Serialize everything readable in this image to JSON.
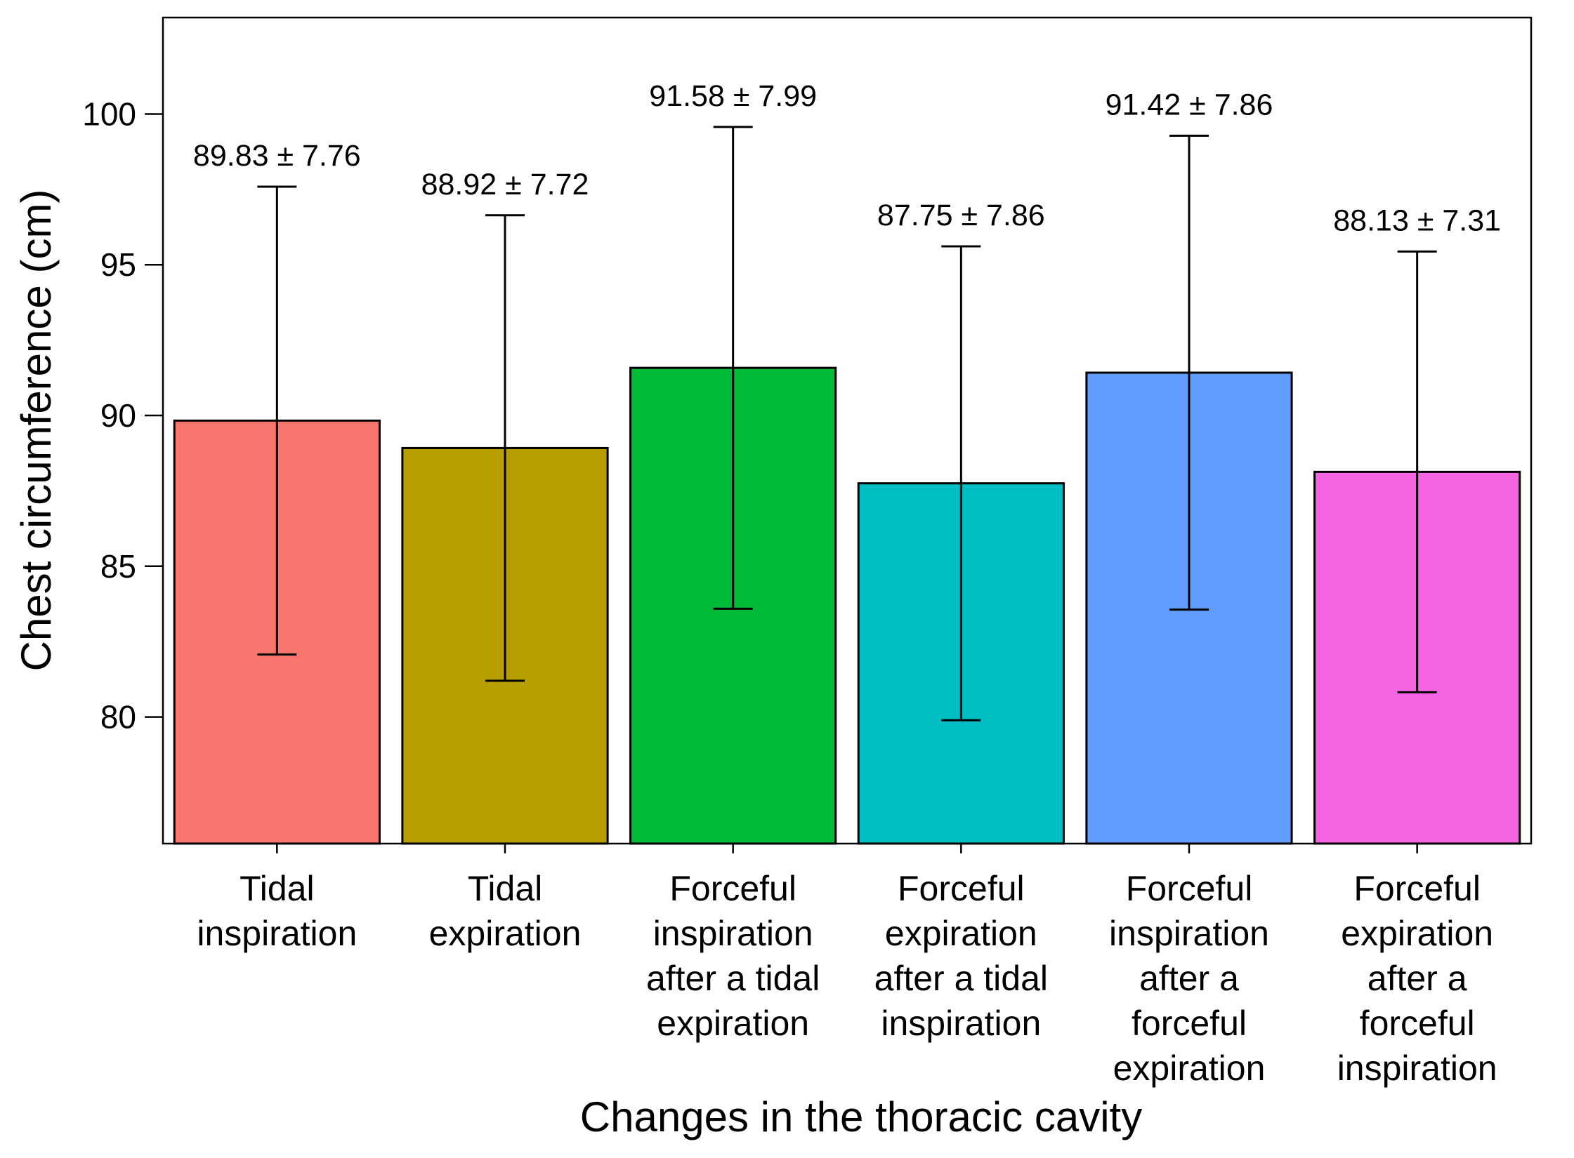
{
  "chart_data": {
    "type": "bar",
    "xlabel": "Changes in the thoracic cavity",
    "ylabel": "Chest circumference (cm)",
    "ylim": [
      75.8,
      103.2
    ],
    "yticks": [
      80,
      85,
      90,
      95,
      100
    ],
    "ytick_labels": [
      "80",
      "85",
      "90",
      "95",
      "100"
    ],
    "grid": false,
    "legend": "none",
    "categories": [
      "Tidal inspiration",
      "Tidal expiration",
      "Forceful inspiration after a tidal expiration",
      "Forceful expiration after a tidal inspiration",
      "Forceful inspiration after a forceful expiration",
      "Forceful expiration after a forceful inspiration"
    ],
    "category_lines": [
      [
        "Tidal",
        "inspiration"
      ],
      [
        "Tidal",
        "expiration"
      ],
      [
        "Forceful",
        "inspiration",
        "after a tidal",
        "expiration"
      ],
      [
        "Forceful",
        "expiration",
        "after a tidal",
        "inspiration"
      ],
      [
        "Forceful",
        "inspiration",
        "after a",
        "forceful",
        "expiration"
      ],
      [
        "Forceful",
        "expiration",
        "after a",
        "forceful",
        "inspiration"
      ]
    ],
    "values": [
      89.83,
      88.92,
      91.58,
      87.75,
      91.42,
      88.13
    ],
    "errors": [
      7.76,
      7.72,
      7.99,
      7.86,
      7.86,
      7.31
    ],
    "data_labels": [
      "89.83 ± 7.76",
      "88.92 ± 7.72",
      "91.58 ± 7.99",
      "87.75 ± 7.86",
      "91.42 ± 7.86",
      "88.13 ± 7.31"
    ],
    "colors": [
      "#F8766D",
      "#B79F00",
      "#00BA38",
      "#00BFC4",
      "#619CFF",
      "#F564E3"
    ]
  }
}
